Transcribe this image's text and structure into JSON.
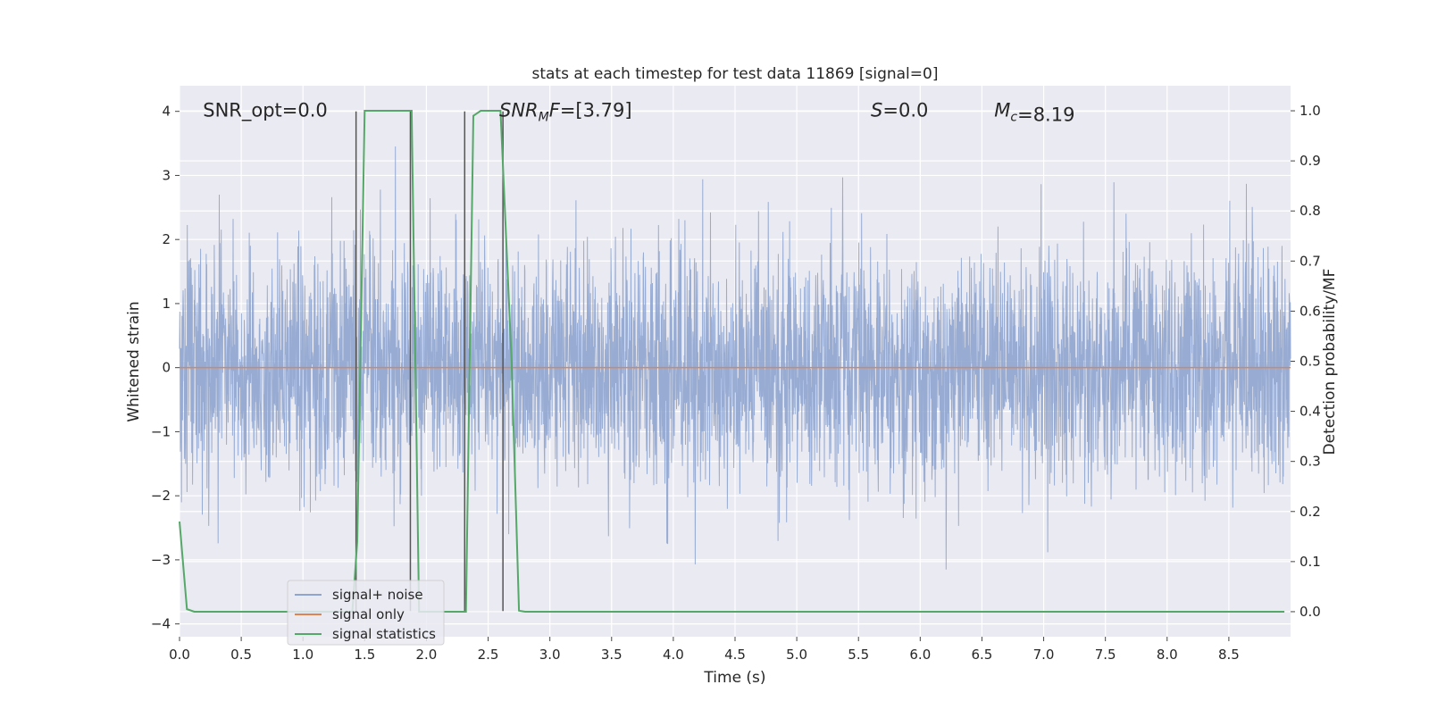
{
  "chart_data": {
    "type": "line",
    "title": "stats at each timestep for test data 11869 [signal=0]",
    "xlabel": "Time (s)",
    "ylabel_left": "Whitened strain",
    "ylabel_right": "Detection probability/MF",
    "xlim": [
      0.0,
      9.0
    ],
    "ylim_left": [
      -4.2,
      4.4
    ],
    "ylim_right": [
      -0.05,
      1.05
    ],
    "x_ticks": [
      0.0,
      0.5,
      1.0,
      1.5,
      2.0,
      2.5,
      3.0,
      3.5,
      4.0,
      4.5,
      5.0,
      5.5,
      6.0,
      6.5,
      7.0,
      7.5,
      8.0,
      8.5
    ],
    "x_tick_labels": [
      "0.0",
      "0.5",
      "1.0",
      "1.5",
      "2.0",
      "2.5",
      "3.0",
      "3.5",
      "4.0",
      "4.5",
      "5.0",
      "5.5",
      "6.0",
      "6.5",
      "7.0",
      "7.5",
      "8.0",
      "8.5"
    ],
    "y_left_ticks": [
      -4,
      -3,
      -2,
      -1,
      0,
      1,
      2,
      3,
      4
    ],
    "y_left_tick_labels": [
      "−4",
      "−3",
      "−2",
      "−1",
      "0",
      "1",
      "2",
      "3",
      "4"
    ],
    "y_right_ticks": [
      0.0,
      0.1,
      0.2,
      0.3,
      0.4,
      0.5,
      0.6,
      0.7,
      0.8,
      0.9,
      1.0
    ],
    "y_right_tick_labels": [
      "0.0",
      "0.1",
      "0.2",
      "0.3",
      "0.4",
      "0.5",
      "0.6",
      "0.7",
      "0.8",
      "0.9",
      "1.0"
    ],
    "grid": true,
    "legend_position": "lower-left",
    "annotations": [
      {
        "text": "SNR_opt=0.0",
        "x": 0.19,
        "y": 4.0
      },
      {
        "text": "SNR_MF=[3.79]",
        "x": 2.59,
        "y": 4.0
      },
      {
        "text": "S=0.0",
        "x": 5.6,
        "y": 4.0
      },
      {
        "text": "M_c=8.19",
        "x": 6.6,
        "y": 4.0
      }
    ],
    "vertical_markers": [
      {
        "x": 1.43,
        "y_range": [
          -3.8,
          4.0
        ]
      },
      {
        "x": 1.87,
        "y_range": [
          -3.8,
          4.0
        ]
      },
      {
        "x": 2.31,
        "y_range": [
          -3.8,
          4.0
        ]
      },
      {
        "x": 2.62,
        "y_range": [
          -3.8,
          4.0
        ]
      }
    ],
    "series": [
      {
        "name": "signal+ noise",
        "color": "#8fa5cf",
        "axis": "left",
        "description_type": "noise",
        "t_range": [
          0.0,
          9.0
        ],
        "amplitude_std": 0.9,
        "peak_range": [
          -3.8,
          4.0
        ]
      },
      {
        "name": "signal only",
        "color": "#dd8452",
        "axis": "left",
        "x": [
          0.0,
          9.0
        ],
        "y": [
          0.0,
          0.0
        ]
      },
      {
        "name": "signal statistics",
        "color": "#55a868",
        "axis": "right",
        "x": [
          0.0,
          0.06,
          0.12,
          0.18,
          1.4,
          1.44,
          1.5,
          1.86,
          1.88,
          1.94,
          2.0,
          2.3,
          2.32,
          2.38,
          2.44,
          2.6,
          2.69,
          2.75,
          2.8,
          8.95
        ],
        "y": [
          0.18,
          0.005,
          0.0,
          0.0,
          0.0,
          0.14,
          1.0,
          1.0,
          1.0,
          0.0,
          0.0,
          0.0,
          0.0,
          0.99,
          1.0,
          1.0,
          0.5,
          0.002,
          0.0,
          0.0
        ]
      }
    ]
  }
}
